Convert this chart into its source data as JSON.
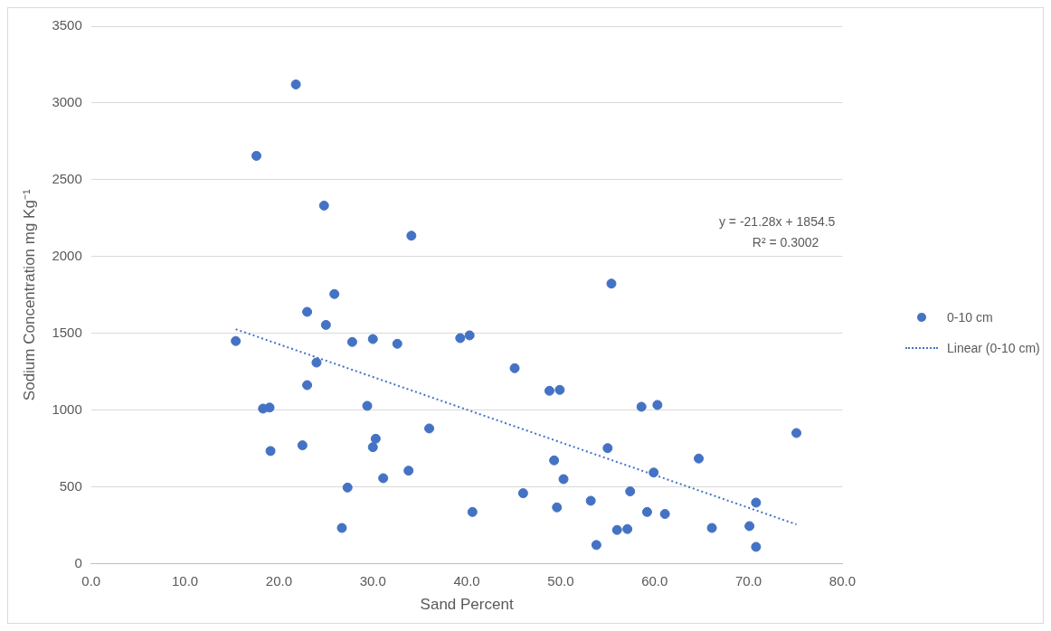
{
  "chart_data": {
    "type": "scatter",
    "xlabel": "Sand Percent",
    "ylabel": "Sodium Concentration mg Kg⁻¹",
    "xlim": [
      0,
      80
    ],
    "xticks": [
      {
        "value": 0,
        "label": "0.0"
      },
      {
        "value": 10,
        "label": "10.0"
      },
      {
        "value": 20,
        "label": "20.0"
      },
      {
        "value": 30,
        "label": "30.0"
      },
      {
        "value": 40,
        "label": "40.0"
      },
      {
        "value": 50,
        "label": "50.0"
      },
      {
        "value": 60,
        "label": "60.0"
      },
      {
        "value": 70,
        "label": "70.0"
      },
      {
        "value": 80,
        "label": "80.0"
      }
    ],
    "ylim": [
      0,
      3500
    ],
    "yticks": [
      0,
      500,
      1000,
      1500,
      2000,
      2500,
      3000,
      3500
    ],
    "grid": "y",
    "legend": "right",
    "marker": "circle",
    "series": [
      {
        "name": "0-10 cm",
        "color": "#4472c4",
        "x": [
          15.4,
          17.6,
          18.3,
          19.0,
          19.1,
          21.8,
          22.5,
          23.0,
          23.0,
          24.0,
          24.8,
          25.0,
          25.9,
          26.7,
          27.3,
          27.8,
          29.4,
          30.0,
          30.0,
          30.3,
          31.1,
          32.6,
          33.8,
          34.1,
          36.0,
          39.3,
          40.3,
          40.6,
          45.1,
          46.0,
          48.8,
          49.3,
          49.6,
          49.9,
          50.3,
          53.2,
          53.8,
          55.0,
          55.4,
          56.0,
          57.1,
          57.4,
          58.6,
          59.2,
          59.9,
          60.3,
          61.1,
          64.7,
          66.1,
          70.1,
          70.8,
          70.8,
          75.1
        ],
        "values": [
          1450,
          2656,
          1010,
          1017,
          734,
          3121,
          771,
          1640,
          1163,
          1310,
          2332,
          1555,
          1756,
          233,
          496,
          1444,
          1028,
          1463,
          759,
          814,
          557,
          1432,
          606,
          2136,
          881,
          1469,
          1487,
          337,
          1273,
          459,
          1126,
          673,
          367,
          1132,
          551,
          410,
          122,
          753,
          1824,
          220,
          226,
          471,
          1022,
          337,
          594,
          1034,
          324,
          685,
          233,
          245,
          398,
          110,
          851
        ]
      },
      {
        "name": "Linear (0-10 cm)",
        "type": "line",
        "color": "#4472c4",
        "line_style": "dotted",
        "marker": "none",
        "x": [
          15.4,
          75.1
        ],
        "values": [
          1527,
          256
        ]
      }
    ],
    "annotations": [
      "y = -21.28x + 1854.5",
      "R² = 0.3002"
    ]
  }
}
